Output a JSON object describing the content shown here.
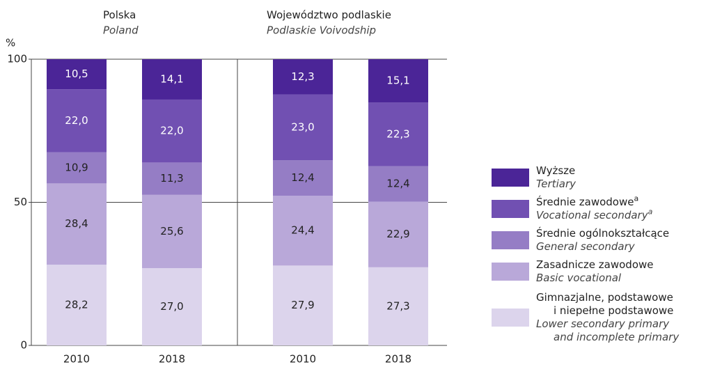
{
  "chart_data": {
    "type": "stacked_bar",
    "y_axis_label": "%",
    "groups": [
      {
        "name": "Polska",
        "name_en": "Poland"
      },
      {
        "name": "Województwo podlaskie",
        "name_en": "Podlaskie Voivodship"
      }
    ],
    "categories": [
      "2010",
      "2018",
      "2010",
      "2018"
    ],
    "ylim": [
      0,
      100
    ],
    "yticks": [
      0,
      50,
      100
    ],
    "grid": true,
    "legend": "right",
    "series": [
      {
        "name": [
          "Gimnazjalne, podstawowe",
          "i niepełne podstawowe"
        ],
        "name_en": [
          "Lower secondary primary",
          "and incomplete primary"
        ],
        "color": "#dcd4ec",
        "values": [
          28.2,
          27.0,
          27.9,
          27.3
        ],
        "value_labels": [
          "28,2",
          "27,0",
          "27,9",
          "27,3"
        ]
      },
      {
        "name": [
          "Zasadnicze zawodowe"
        ],
        "name_en": [
          "Basic vocational"
        ],
        "color": "#b9a8d9",
        "values": [
          28.4,
          25.6,
          24.4,
          22.9
        ],
        "value_labels": [
          "28,4",
          "25,6",
          "24,4",
          "22,9"
        ]
      },
      {
        "name": [
          "Średnie ogólnokształcące"
        ],
        "name_en": [
          "General secondary"
        ],
        "color": "#957dc5",
        "values": [
          10.9,
          11.3,
          12.4,
          12.4
        ],
        "value_labels": [
          "10,9",
          "11,3",
          "12,4",
          "12,4"
        ]
      },
      {
        "name": [
          "Średnie zawodowe"
        ],
        "name_en": [
          "Vocational secondary"
        ],
        "note": "a",
        "color": "#7150b2",
        "values": [
          22.0,
          22.0,
          23.0,
          22.3
        ],
        "value_labels": [
          "22,0",
          "22,0",
          "23,0",
          "22,3"
        ]
      },
      {
        "name": [
          "Wyższe"
        ],
        "name_en": [
          "Tertiary"
        ],
        "color": "#4b2597",
        "values": [
          10.5,
          14.1,
          12.3,
          15.1
        ],
        "value_labels": [
          "10,5",
          "14,1",
          "12,3",
          "15,1"
        ]
      }
    ]
  }
}
